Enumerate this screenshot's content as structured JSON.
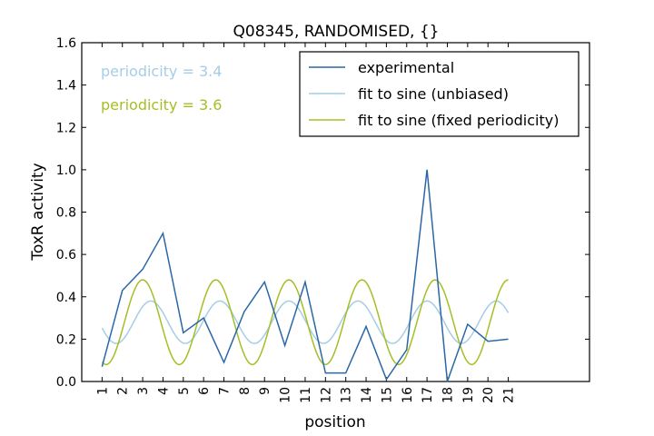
{
  "chart_data": {
    "type": "line",
    "title": "Q08345, RANDOMISED, {}",
    "xlabel": "position",
    "ylabel": "ToxR activity",
    "xlim": [
      0,
      25
    ],
    "ylim": [
      0,
      1.6
    ],
    "x_ticks": [
      1,
      2,
      3,
      4,
      5,
      6,
      7,
      8,
      9,
      10,
      11,
      12,
      13,
      14,
      15,
      16,
      17,
      18,
      19,
      20,
      21
    ],
    "x_tick_labels": [
      "1",
      "2",
      "3",
      "4",
      "5",
      "6",
      "7",
      "8",
      "9",
      "10",
      "11",
      "12",
      "13",
      "14",
      "15",
      "16",
      "17",
      "18",
      "19",
      "20",
      "21"
    ],
    "y_ticks": [
      0,
      0.2,
      0.4,
      0.6,
      0.8,
      1.0,
      1.2,
      1.4,
      1.6
    ],
    "y_tick_labels": [
      "0.0",
      "0.2",
      "0.4",
      "0.6",
      "0.8",
      "1.0",
      "1.2",
      "1.4",
      "1.6"
    ],
    "grid": false,
    "legend_position": "top-right",
    "series": [
      {
        "name": "experimental",
        "kind": "experimental",
        "color": "#2a67a6",
        "x": [
          1,
          2,
          3,
          4,
          5,
          6,
          7,
          8,
          9,
          10,
          11,
          12,
          13,
          14,
          15,
          16,
          17,
          18,
          19,
          20,
          21
        ],
        "y": [
          0.07,
          0.43,
          0.53,
          0.7,
          0.23,
          0.3,
          0.09,
          0.33,
          0.47,
          0.17,
          0.47,
          0.04,
          0.04,
          0.26,
          0.01,
          0.15,
          1.0,
          0.0,
          0.27,
          0.19,
          0.2
        ]
      },
      {
        "name": "fit to sine (unbiased)",
        "kind": "sine",
        "color": "#a6cde6",
        "periodicity": 3.4,
        "amplitude": 0.1,
        "offset": 0.28,
        "phase_peak_x": 3.4,
        "x_range": [
          1,
          21
        ]
      },
      {
        "name": "fit to sine (fixed periodicity)",
        "kind": "sine",
        "color": "#a4bf26",
        "periodicity": 3.6,
        "amplitude": 0.2,
        "offset": 0.28,
        "phase_peak_x": 3.0,
        "x_range": [
          1,
          21
        ]
      }
    ],
    "annotations": [
      {
        "text": "periodicity = 3.4",
        "color": "#a6cde6"
      },
      {
        "text": "periodicity = 3.6",
        "color": "#a4bf26"
      }
    ]
  }
}
